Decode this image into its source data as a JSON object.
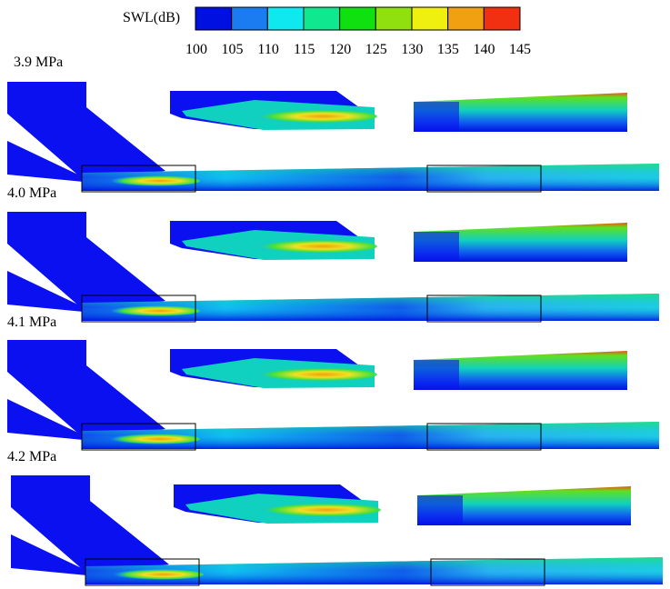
{
  "colorbar": {
    "title": "SWL(dB)",
    "ticks": [
      "100",
      "105",
      "110",
      "115",
      "120",
      "125",
      "130",
      "135",
      "140",
      "145"
    ],
    "colors": [
      "#0010e0",
      "#1a7cf0",
      "#10e8f0",
      "#10e890",
      "#10e010",
      "#90e010",
      "#f0f010",
      "#f0a010",
      "#f03010"
    ]
  },
  "panels": [
    {
      "label": "3.9 MPa"
    },
    {
      "label": "4.0 MPa"
    },
    {
      "label": "4.1 MPa"
    },
    {
      "label": "4.2 MPa"
    }
  ]
}
